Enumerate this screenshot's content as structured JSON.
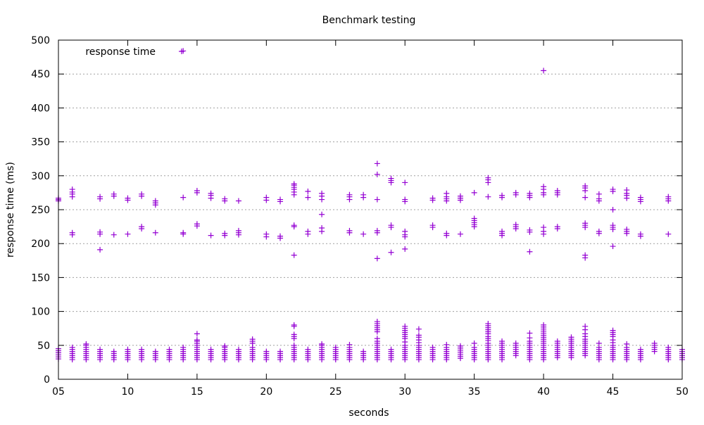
{
  "chart_data": {
    "type": "scatter",
    "title": "Benchmark testing",
    "xlabel": "seconds",
    "ylabel": "response time (ms)",
    "xlim": [
      5,
      50
    ],
    "ylim": [
      0,
      500
    ],
    "x_ticks": [
      "05",
      "10",
      "15",
      "20",
      "25",
      "30",
      "35",
      "40",
      "45",
      "50"
    ],
    "y_ticks": [
      "0",
      "50",
      "100",
      "150",
      "200",
      "250",
      "300",
      "350",
      "400",
      "450",
      "500"
    ],
    "grid": true,
    "legend": {
      "position": "top-left",
      "entries": [
        "response time"
      ]
    },
    "marker": "plus",
    "color": "#9400d3",
    "series": [
      {
        "name": "response time",
        "points": [
          {
            "x": 5,
            "y": [
              30,
              33,
              36,
              39,
              42,
              45,
              263,
              265,
              267
            ]
          },
          {
            "x": 6,
            "y": [
              29,
              32,
              35,
              38,
              41,
              44,
              47,
              213,
              216,
              269,
              273,
              276,
              280
            ]
          },
          {
            "x": 7,
            "y": [
              29,
              32,
              35,
              38,
              41,
              44,
              47,
              50,
              52
            ]
          },
          {
            "x": 8,
            "y": [
              29,
              32,
              35,
              38,
              41,
              44,
              191,
              214,
              217,
              266,
              269
            ]
          },
          {
            "x": 9,
            "y": [
              29,
              32,
              35,
              38,
              41,
              213,
              270,
              273
            ]
          },
          {
            "x": 10,
            "y": [
              29,
              32,
              35,
              38,
              41,
              44,
              214,
              264,
              267
            ]
          },
          {
            "x": 11,
            "y": [
              29,
              32,
              35,
              38,
              41,
              44,
              222,
              225,
              270,
              273
            ]
          },
          {
            "x": 12,
            "y": [
              29,
              32,
              35,
              38,
              41,
              216,
              257,
              260,
              263
            ]
          },
          {
            "x": 13,
            "y": [
              29,
              32,
              35,
              38,
              41,
              44
            ]
          },
          {
            "x": 14,
            "y": [
              29,
              32,
              35,
              38,
              41,
              44,
              47,
              214,
              216,
              268,
              484
            ]
          },
          {
            "x": 15,
            "y": [
              29,
              32,
              35,
              38,
              41,
              44,
              47,
              50,
              53,
              56,
              58,
              67,
              226,
              229,
              275,
              278
            ]
          },
          {
            "x": 16,
            "y": [
              29,
              32,
              35,
              38,
              41,
              44,
              212,
              267,
              271,
              274
            ]
          },
          {
            "x": 17,
            "y": [
              29,
              32,
              35,
              38,
              41,
              44,
              47,
              49,
              212,
              215,
              263,
              266
            ]
          },
          {
            "x": 18,
            "y": [
              29,
              32,
              35,
              38,
              41,
              44,
              213,
              216,
              219,
              263
            ]
          },
          {
            "x": 19,
            "y": [
              29,
              32,
              35,
              38,
              41,
              44,
              47,
              53,
              56,
              59
            ]
          },
          {
            "x": 20,
            "y": [
              29,
              32,
              35,
              38,
              41,
              210,
              214,
              264,
              268
            ]
          },
          {
            "x": 21,
            "y": [
              29,
              32,
              35,
              38,
              41,
              208,
              211,
              262,
              265
            ]
          },
          {
            "x": 22,
            "y": [
              29,
              32,
              35,
              38,
              41,
              44,
              47,
              50,
              60,
              63,
              66,
              78,
              80,
              183,
              225,
              227,
              272,
              276,
              280,
              283,
              286,
              288
            ]
          },
          {
            "x": 23,
            "y": [
              29,
              32,
              35,
              38,
              41,
              44,
              214,
              218,
              268,
              277
            ]
          },
          {
            "x": 24,
            "y": [
              29,
              32,
              35,
              38,
              41,
              44,
              47,
              50,
              52,
              218,
              223,
              243,
              265,
              270,
              274
            ]
          },
          {
            "x": 25,
            "y": [
              29,
              32,
              35,
              38,
              41,
              44,
              47
            ]
          },
          {
            "x": 26,
            "y": [
              29,
              32,
              35,
              38,
              41,
              44,
              47,
              51,
              216,
              219,
              265,
              269,
              272
            ]
          },
          {
            "x": 27,
            "y": [
              29,
              32,
              35,
              38,
              41,
              214,
              268,
              272
            ]
          },
          {
            "x": 28,
            "y": [
              29,
              32,
              35,
              38,
              41,
              44,
              47,
              50,
              53,
              56,
              60,
              70,
              73,
              76,
              79,
              82,
              85,
              178,
              216,
              219,
              265,
              302,
              318
            ]
          },
          {
            "x": 29,
            "y": [
              29,
              32,
              35,
              38,
              41,
              44,
              187,
              224,
              227,
              290,
              293,
              296
            ]
          },
          {
            "x": 30,
            "y": [
              29,
              32,
              35,
              38,
              41,
              44,
              47,
              50,
              55,
              60,
              63,
              66,
              69,
              72,
              75,
              78,
              192,
              210,
              213,
              218,
              262,
              265,
              290
            ]
          },
          {
            "x": 31,
            "y": [
              29,
              32,
              35,
              38,
              41,
              44,
              47,
              50,
              54,
              58,
              62,
              65,
              74
            ]
          },
          {
            "x": 32,
            "y": [
              29,
              32,
              35,
              38,
              41,
              44,
              47,
              224,
              227,
              264,
              267
            ]
          },
          {
            "x": 33,
            "y": [
              29,
              32,
              35,
              38,
              41,
              44,
              47,
              51,
              212,
              215,
              263,
              266,
              269,
              274
            ]
          },
          {
            "x": 34,
            "y": [
              31,
              34,
              37,
              40,
              43,
              46,
              49,
              214,
              264,
              267,
              270
            ]
          },
          {
            "x": 35,
            "y": [
              29,
              32,
              35,
              38,
              41,
              44,
              47,
              53,
              225,
              228,
              231,
              234,
              237,
              275
            ]
          },
          {
            "x": 36,
            "y": [
              29,
              32,
              35,
              38,
              41,
              44,
              47,
              50,
              53,
              57,
              60,
              63,
              67,
              70,
              73,
              76,
              79,
              82,
              269,
              290,
              294,
              297
            ]
          },
          {
            "x": 37,
            "y": [
              29,
              32,
              35,
              38,
              41,
              44,
              47,
              50,
              53,
              56,
              212,
              215,
              218,
              268,
              271
            ]
          },
          {
            "x": 38,
            "y": [
              35,
              38,
              41,
              44,
              47,
              50,
              53,
              222,
              225,
              228,
              272,
              275
            ]
          },
          {
            "x": 39,
            "y": [
              29,
              32,
              35,
              38,
              41,
              44,
              47,
              50,
              53,
              56,
              61,
              68,
              188,
              217,
              220,
              268,
              271,
              274
            ]
          },
          {
            "x": 40,
            "y": [
              29,
              32,
              35,
              38,
              41,
              44,
              47,
              50,
              53,
              56,
              59,
              62,
              65,
              68,
              71,
              74,
              77,
              80,
              214,
              218,
              224,
              272,
              275,
              280,
              284,
              455
            ]
          },
          {
            "x": 41,
            "y": [
              32,
              35,
              38,
              41,
              44,
              47,
              50,
              53,
              56,
              222,
              225,
              272,
              275,
              278
            ]
          },
          {
            "x": 42,
            "y": [
              32,
              35,
              38,
              41,
              44,
              47,
              50,
              53,
              56,
              59,
              62
            ]
          },
          {
            "x": 43,
            "y": [
              35,
              38,
              41,
              44,
              47,
              50,
              53,
              56,
              59,
              63,
              67,
              73,
              78,
              179,
              183,
              224,
              227,
              230,
              268,
              278,
              282,
              285
            ]
          },
          {
            "x": 44,
            "y": [
              29,
              32,
              35,
              38,
              41,
              44,
              47,
              53,
              215,
              218,
              263,
              266,
              273
            ]
          },
          {
            "x": 45,
            "y": [
              29,
              32,
              35,
              38,
              41,
              44,
              47,
              50,
              54,
              58,
              63,
              66,
              69,
              72,
              196,
              221,
              224,
              227,
              250,
              277,
              280
            ]
          },
          {
            "x": 46,
            "y": [
              29,
              32,
              35,
              38,
              41,
              44,
              47,
              52,
              215,
              218,
              221,
              267,
              271,
              274,
              279
            ]
          },
          {
            "x": 47,
            "y": [
              29,
              32,
              35,
              38,
              41,
              44,
              211,
              214,
              262,
              265,
              268
            ]
          },
          {
            "x": 48,
            "y": [
              41,
              44,
              47,
              50,
              53
            ]
          },
          {
            "x": 49,
            "y": [
              29,
              32,
              35,
              38,
              41,
              44,
              47,
              214,
              263,
              266,
              269
            ]
          },
          {
            "x": 50,
            "y": [
              29,
              32,
              35,
              38,
              41,
              44
            ]
          }
        ]
      }
    ]
  }
}
